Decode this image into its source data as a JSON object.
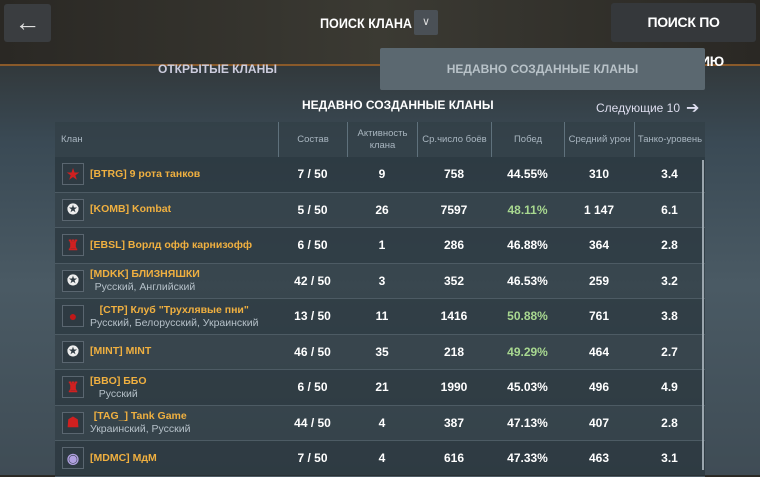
{
  "header": {
    "back_icon": "arrow-left-icon",
    "title": "ПОИСК КЛАНА",
    "dropdown_icon": "chevron-down-icon",
    "search_button": "ПОИСК ПО НАЗВАНИЮ"
  },
  "tabs": [
    {
      "label": "ОТКРЫТЫЕ КЛАНЫ",
      "active": false
    },
    {
      "label": "НЕДАВНО СОЗДАННЫЕ КЛАНЫ",
      "active": true
    }
  ],
  "section": {
    "title": "НЕДАВНО СОЗДАННЫЕ КЛАНЫ",
    "next_label": "Следующие 10",
    "next_icon": "arrow-right-icon"
  },
  "colors": {
    "clan_name": "#f0b040",
    "good_winrate": "#a8d890"
  },
  "table": {
    "columns": [
      "Клан",
      "Состав",
      "Активность клана",
      "Ср.число боёв",
      "Побед",
      "Средний урон",
      "Танко-уровень"
    ],
    "rows": [
      {
        "emblem": "red-star",
        "name": "[BTRG] 9 рота танков",
        "langs": "",
        "members": "7 / 50",
        "activity": "9",
        "battles": "758",
        "wins": "44.55%",
        "good": false,
        "damage": "310",
        "tier": "3.4"
      },
      {
        "emblem": "white-star",
        "name": "[KOMB] Kombat",
        "langs": "",
        "members": "5 / 50",
        "activity": "26",
        "battles": "7597",
        "wins": "48.11%",
        "good": true,
        "damage": "1 147",
        "tier": "6.1"
      },
      {
        "emblem": "red-crab",
        "name": "[EBSL] Ворлд офф карнизофф",
        "langs": "",
        "members": "6 / 50",
        "activity": "1",
        "battles": "286",
        "wins": "46.88%",
        "good": false,
        "damage": "364",
        "tier": "2.8"
      },
      {
        "emblem": "white-star",
        "name": "[MDKK] БЛИЗНЯШКИ",
        "langs": "Русский, Английский",
        "members": "42 / 50",
        "activity": "3",
        "battles": "352",
        "wins": "46.53%",
        "good": false,
        "damage": "259",
        "tier": "3.2"
      },
      {
        "emblem": "red-beast",
        "name": "[CTP] Клуб \"Трухлявые пни\"",
        "langs": "Русский, Белорусский, Украинский",
        "members": "13 / 50",
        "activity": "11",
        "battles": "1416",
        "wins": "50.88%",
        "good": true,
        "damage": "761",
        "tier": "3.8"
      },
      {
        "emblem": "white-star",
        "name": "[MINT] MINT",
        "langs": "",
        "members": "46 / 50",
        "activity": "35",
        "battles": "218",
        "wins": "49.29%",
        "good": true,
        "damage": "464",
        "tier": "2.7"
      },
      {
        "emblem": "red-crab",
        "name": "[BBO] ББО",
        "langs": "Русский",
        "members": "6 / 50",
        "activity": "21",
        "battles": "1990",
        "wins": "45.03%",
        "good": false,
        "damage": "496",
        "tier": "4.9"
      },
      {
        "emblem": "red-demon",
        "name": "[TAG_] Tank Game",
        "langs": "Украинский, Русский",
        "members": "44 / 50",
        "activity": "4",
        "battles": "387",
        "wins": "47.13%",
        "good": false,
        "damage": "407",
        "tier": "2.8"
      },
      {
        "emblem": "purple-helmet",
        "name": "[MDMC] МдМ",
        "langs": "",
        "members": "7 / 50",
        "activity": "4",
        "battles": "616",
        "wins": "47.33%",
        "good": false,
        "damage": "463",
        "tier": "3.1"
      }
    ]
  }
}
